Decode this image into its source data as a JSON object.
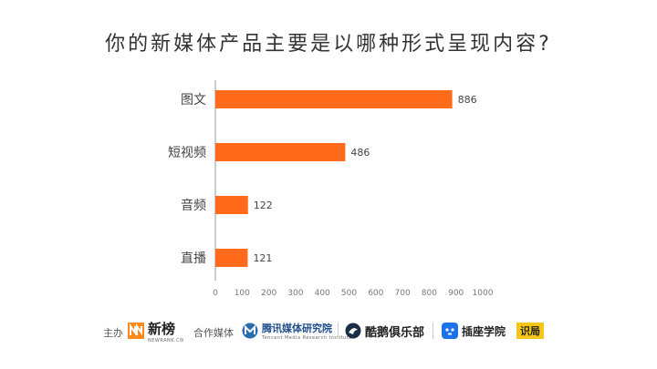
{
  "chart_data": {
    "type": "bar",
    "orientation": "horizontal",
    "title": "你的新媒体产品主要是以哪种形式呈现内容?",
    "categories": [
      "图文",
      "短视频",
      "音频",
      "直播"
    ],
    "values": [
      886,
      486,
      122,
      121
    ],
    "xlim": [
      0,
      1000
    ],
    "xticks": [
      0,
      100,
      200,
      300,
      400,
      500,
      600,
      700,
      800,
      900,
      1000
    ],
    "bar_color": "#FF6B1A",
    "grid": false,
    "legend": "none"
  },
  "footer": {
    "host_label": "主办",
    "host_logo": "新榜",
    "host_logo_sub": "NEWRANK.CN",
    "partner_label": "合作媒体",
    "partners": [
      {
        "name": "腾讯媒体研究院",
        "sub": "Tencent Media Research Institute"
      },
      {
        "name": "酷鹅俱乐部"
      },
      {
        "name": "插座学院"
      },
      {
        "name": "识局"
      }
    ]
  },
  "colors": {
    "accent": "#FF6B1A",
    "axis": "#999999",
    "text": "#333333"
  }
}
